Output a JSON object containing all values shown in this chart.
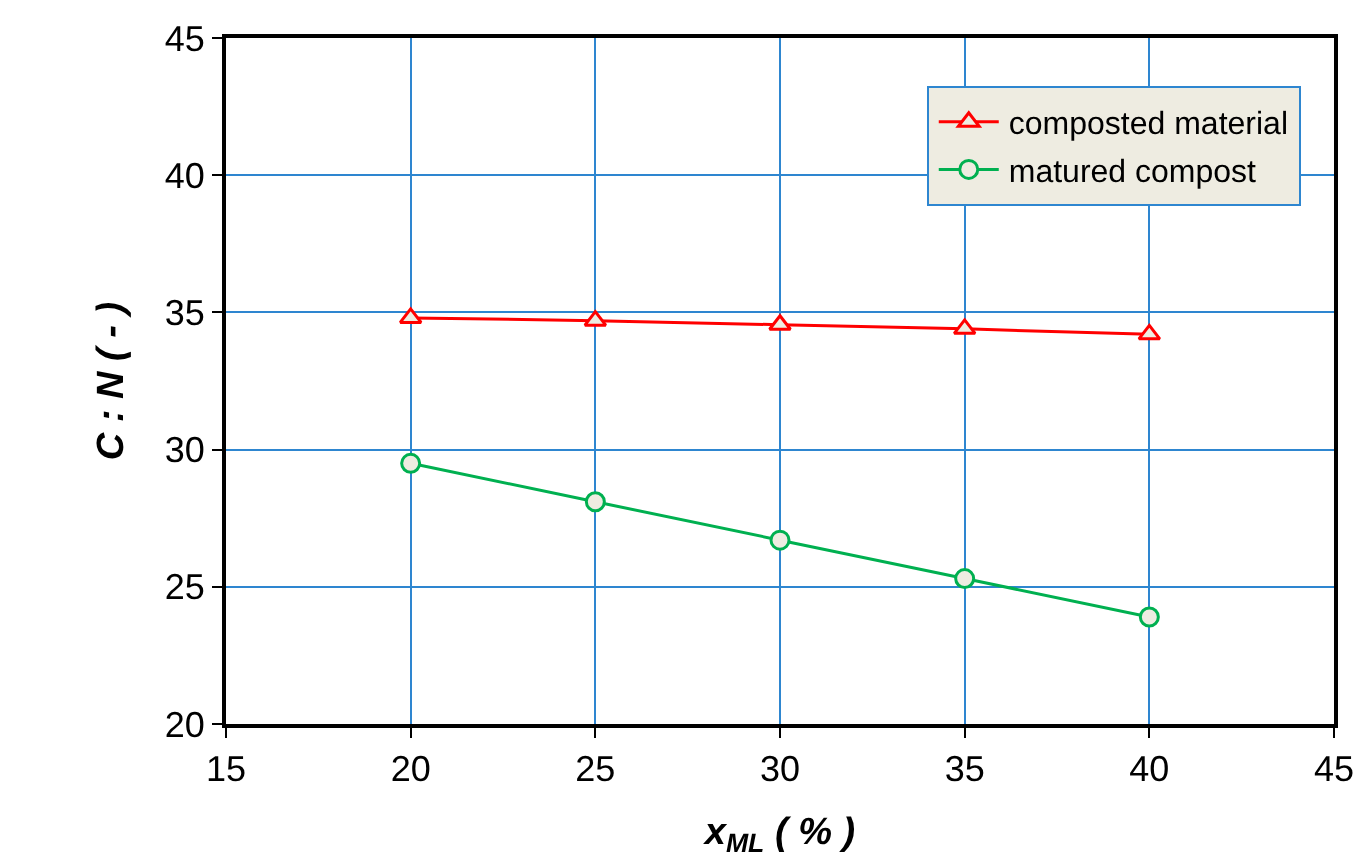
{
  "chart_data": {
    "type": "line",
    "xlabel": "x$_{ML}$ ( % )",
    "ylabel": "C : N ( - )",
    "x": [
      20,
      25,
      30,
      35,
      40
    ],
    "series": [
      {
        "name": "composted material",
        "color": "#ff0000",
        "marker": "triangle",
        "values": [
          34.8,
          34.7,
          34.55,
          34.4,
          34.2
        ]
      },
      {
        "name": "matured compost",
        "color": "#00b050",
        "marker": "circle",
        "values": [
          29.5,
          28.1,
          26.7,
          25.3,
          23.9
        ]
      }
    ],
    "xlim": [
      15,
      45
    ],
    "xticks": [
      15,
      20,
      25,
      30,
      35,
      40,
      45
    ],
    "ylim": [
      20,
      45
    ],
    "yticks": [
      20,
      25,
      30,
      35,
      40,
      45
    ],
    "grid": true,
    "legend": "top right",
    "line_style": "solid"
  }
}
